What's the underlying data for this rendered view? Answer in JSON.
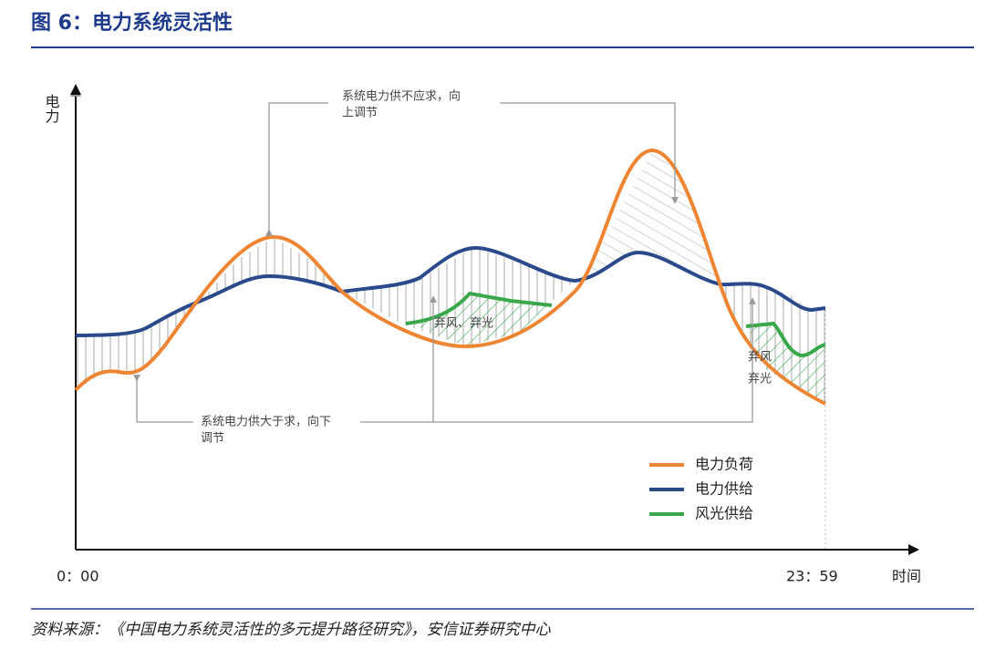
{
  "header": {
    "title": "图 6：电力系统灵活性"
  },
  "axes": {
    "y_label": "电力",
    "x_label": "时间",
    "x_start": "0：00",
    "x_end": "23：59"
  },
  "annotations": {
    "shortage": [
      "系统电力供不应求，向",
      "上调节"
    ],
    "surplus": [
      "系统电力供大于求，向下",
      "调节"
    ],
    "curtail_mid": "弃风、弃光",
    "curtail_right": [
      "弃风",
      "弃光"
    ]
  },
  "legend": [
    {
      "name": "电力负荷",
      "color": "#ee8533"
    },
    {
      "name": "电力供给",
      "color": "#2a4a8c"
    },
    {
      "name": "风光供给",
      "color": "#3aa84a"
    }
  ],
  "source": "资料来源：《中国电力系统灵活性的多元提升路径研究》，安信证券研究中心"
}
